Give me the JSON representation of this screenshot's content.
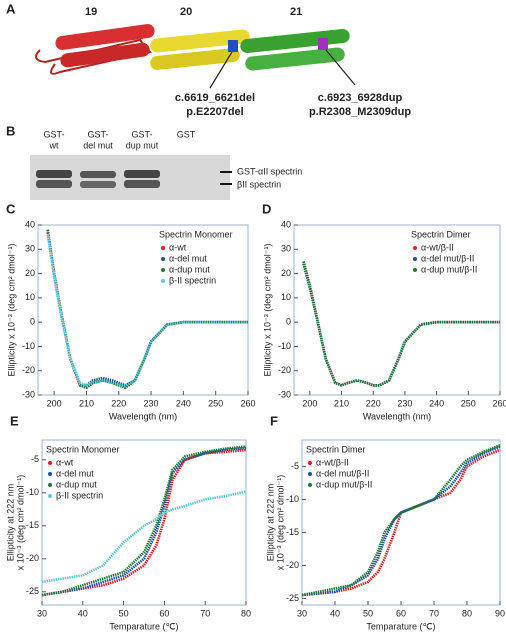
{
  "panelA": {
    "label": "A",
    "domains": [
      "19",
      "20",
      "21"
    ],
    "mut1": [
      "c.6619_6621del",
      "p.E2207del"
    ],
    "mut2": [
      "c.6923_6928dup",
      "p.R2308_M2309dup"
    ]
  },
  "panelB": {
    "label": "B",
    "lanes": [
      [
        "GST-",
        "wt"
      ],
      [
        "GST-",
        "del mut"
      ],
      [
        "GST-",
        "dup mut"
      ],
      [
        "GST"
      ]
    ],
    "bands": [
      "GST-αII spectrin",
      "βII spectrin"
    ]
  },
  "chart_data": [
    {
      "type": "line",
      "label": "C",
      "legend_title": "Spectrin Monomer",
      "legend": "upper right",
      "xlabel": "Wavelength (nm)",
      "ylabel": [
        "Ellipticity x 10⁻³ (deg cm² dmol⁻¹)"
      ],
      "x": [
        198,
        200,
        202,
        205,
        208,
        210,
        212,
        215,
        218,
        220,
        222,
        225,
        228,
        230,
        235,
        240,
        250,
        260
      ],
      "series": [
        {
          "name": "α-wt",
          "color": "#e02020",
          "values": [
            38,
            20,
            5,
            -15,
            -26,
            -27,
            -25,
            -24,
            -25,
            -26,
            -27,
            -24,
            -15,
            -8,
            -1,
            0,
            0,
            0
          ]
        },
        {
          "name": "α-del mut",
          "color": "#1f4fa0",
          "values": [
            37,
            19,
            4,
            -15,
            -26,
            -26,
            -24,
            -23,
            -24,
            -25,
            -26,
            -24,
            -15,
            -8,
            -1,
            0,
            0,
            0
          ]
        },
        {
          "name": "α-dup mut",
          "color": "#1f7a3a",
          "values": [
            38,
            20,
            5,
            -15,
            -26,
            -27,
            -25,
            -24,
            -25,
            -26,
            -27,
            -24,
            -15,
            -8,
            -1,
            0,
            0,
            0
          ]
        },
        {
          "name": "β-II spectrin",
          "color": "#5cc8e0",
          "values": [
            36,
            19,
            4,
            -15,
            -25,
            -26,
            -25,
            -24,
            -25,
            -26,
            -26,
            -24,
            -15,
            -8,
            -1,
            0,
            0,
            0
          ]
        }
      ],
      "xlim": [
        195,
        260
      ],
      "xticks": [
        200,
        210,
        220,
        230,
        240,
        250,
        260
      ],
      "ylim": [
        -30,
        40
      ],
      "yticks": [
        -30,
        -20,
        -10,
        0,
        10,
        20,
        30,
        40
      ]
    },
    {
      "type": "line",
      "label": "D",
      "legend_title": "Spectrin Dimer",
      "legend": "upper right",
      "xlabel": "Wavelength (nm)",
      "ylabel": [
        "Ellipticity x 10⁻³ (deg cm² dmol⁻¹)"
      ],
      "x": [
        198,
        200,
        202,
        205,
        208,
        210,
        212,
        215,
        218,
        220,
        222,
        225,
        228,
        230,
        235,
        240,
        250,
        260
      ],
      "series": [
        {
          "name": "α-wt/β-II",
          "color": "#e02020",
          "values": [
            25,
            15,
            3,
            -15,
            -25,
            -26,
            -25,
            -24,
            -25,
            -26,
            -26,
            -24,
            -15,
            -8,
            -1,
            0,
            0,
            0
          ]
        },
        {
          "name": "α-del mut/β-II",
          "color": "#1f4fa0",
          "values": [
            24,
            14,
            3,
            -15,
            -25,
            -26,
            -25,
            -24,
            -25,
            -26,
            -26,
            -24,
            -15,
            -8,
            -1,
            0,
            0,
            0
          ]
        },
        {
          "name": "α-dup mut/β-II",
          "color": "#1f7a3a",
          "values": [
            25,
            15,
            3,
            -15,
            -25,
            -26,
            -25,
            -24,
            -25,
            -26,
            -26,
            -24,
            -15,
            -8,
            -1,
            0,
            0,
            0
          ]
        }
      ],
      "xlim": [
        195,
        260
      ],
      "xticks": [
        200,
        210,
        220,
        230,
        240,
        250,
        260
      ],
      "ylim": [
        -30,
        40
      ],
      "yticks": [
        -30,
        -20,
        -10,
        0,
        10,
        20,
        30,
        40
      ]
    },
    {
      "type": "line",
      "label": "E",
      "legend_title": "Spectrin Monomer",
      "legend": "upper left",
      "xlabel": "Temparature (℃)",
      "ylabel": [
        "Ellipticity at 222 nm",
        "x 10⁻³ (deg cm² dmol⁻¹)"
      ],
      "x": [
        30,
        35,
        40,
        45,
        50,
        55,
        58,
        60,
        62,
        65,
        70,
        75,
        80
      ],
      "series": [
        {
          "name": "α-wt",
          "color": "#e02020",
          "values": [
            -25.5,
            -25,
            -24.5,
            -24,
            -23,
            -21,
            -18,
            -14,
            -8,
            -5,
            -4,
            -3.8,
            -3.5
          ]
        },
        {
          "name": "α-del mut",
          "color": "#1f4fa0",
          "values": [
            -25.5,
            -25,
            -24.5,
            -23.5,
            -22.5,
            -20,
            -16,
            -12,
            -7,
            -5,
            -4,
            -3.5,
            -3.2
          ]
        },
        {
          "name": "α-dup mut",
          "color": "#1f7a3a",
          "values": [
            -25.5,
            -25,
            -24,
            -23,
            -22,
            -19,
            -15,
            -11,
            -6.5,
            -4.5,
            -3.8,
            -3.3,
            -3
          ]
        },
        {
          "name": "β-II spectrin",
          "color": "#5cc8e0",
          "values": [
            -23.5,
            -23,
            -22.5,
            -21,
            -17.5,
            -15,
            -14,
            -13,
            -12.5,
            -12,
            -11,
            -10.5,
            -9.8
          ]
        }
      ],
      "xlim": [
        30,
        80
      ],
      "xticks": [
        30,
        40,
        50,
        60,
        70,
        80
      ],
      "ylim": [
        -27,
        -2
      ],
      "yticks": [
        -25,
        -20,
        -15,
        -10,
        -5
      ]
    },
    {
      "type": "line",
      "label": "F",
      "legend_title": "Spectrin Dimer",
      "legend": "upper left",
      "xlabel": "Temparature (℃)",
      "ylabel": [
        "Ellipticity at 222 nm",
        "x 10⁻³ (deg cm² dmol⁻¹)"
      ],
      "x": [
        30,
        40,
        45,
        50,
        53,
        55,
        58,
        60,
        65,
        70,
        75,
        78,
        80,
        85,
        90
      ],
      "series": [
        {
          "name": "α-wt/β-II",
          "color": "#e02020",
          "values": [
            -24.5,
            -24,
            -23.5,
            -22.5,
            -21,
            -19,
            -15,
            -12,
            -11,
            -10,
            -9,
            -7,
            -5,
            -3.5,
            -2.5
          ]
        },
        {
          "name": "α-del mut/β-II",
          "color": "#1f4fa0",
          "values": [
            -24.5,
            -24,
            -23,
            -21.5,
            -19,
            -16,
            -13,
            -12,
            -11,
            -10,
            -8,
            -6,
            -4.5,
            -3,
            -2
          ]
        },
        {
          "name": "α-dup mut/β-II",
          "color": "#1f7a3a",
          "values": [
            -24.5,
            -23.5,
            -23,
            -21,
            -18,
            -15,
            -13,
            -12,
            -11,
            -10,
            -7,
            -5,
            -4,
            -2.8,
            -1.8
          ]
        }
      ],
      "xlim": [
        30,
        90
      ],
      "xticks": [
        30,
        40,
        50,
        60,
        70,
        80,
        90
      ],
      "ylim": [
        -26,
        -1
      ],
      "yticks": [
        -25,
        -20,
        -15,
        -10,
        -5
      ]
    }
  ]
}
